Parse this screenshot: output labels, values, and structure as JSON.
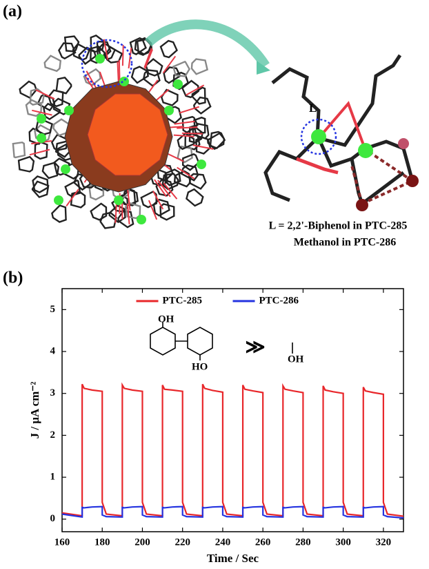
{
  "panel_a": {
    "label": "(a)",
    "ligand_label": "L",
    "caption_line1": "L =  2,2'-Biphenol in PTC-285",
    "caption_line2": "Methanol in PTC-286"
  },
  "panel_b": {
    "label": "(b)"
  },
  "chart_data": {
    "type": "line",
    "xlabel": "Time / Sec",
    "ylabel": "J / μA cm⁻²",
    "xlim": [
      160,
      330
    ],
    "ylim": [
      -0.3,
      5.5
    ],
    "xticks": [
      160,
      180,
      200,
      220,
      240,
      260,
      280,
      300,
      320
    ],
    "yticks": [
      0,
      1,
      2,
      3,
      4,
      5
    ],
    "legend": "upper center",
    "inset": {
      "top_oh": "OH",
      "bottom_ho": "HO",
      "much_greater": "≫",
      "methanol_oh": "OH"
    },
    "x": [
      160,
      170,
      170,
      171,
      175,
      180,
      180,
      182,
      190,
      190,
      191,
      195,
      200,
      200,
      202,
      210,
      210,
      211,
      215,
      220,
      220,
      222,
      230,
      230,
      231,
      235,
      240,
      240,
      242,
      250,
      250,
      251,
      255,
      260,
      260,
      262,
      270,
      270,
      271,
      275,
      280,
      280,
      282,
      290,
      290,
      291,
      295,
      300,
      300,
      302,
      310,
      310,
      311,
      315,
      320,
      320,
      322,
      330
    ],
    "series": [
      {
        "name": "PTC-285",
        "color": "#e8262a",
        "values": [
          0.15,
          0.08,
          3.22,
          3.12,
          3.08,
          3.05,
          0.4,
          0.12,
          0.08,
          3.2,
          3.12,
          3.08,
          3.05,
          0.4,
          0.12,
          0.08,
          3.2,
          3.1,
          3.08,
          3.05,
          0.4,
          0.12,
          0.08,
          3.22,
          3.12,
          3.07,
          3.03,
          0.4,
          0.12,
          0.08,
          3.2,
          3.1,
          3.06,
          3.02,
          0.4,
          0.12,
          0.08,
          3.18,
          3.1,
          3.06,
          3.02,
          0.4,
          0.12,
          0.08,
          3.18,
          3.08,
          3.04,
          3.0,
          0.4,
          0.12,
          0.08,
          3.15,
          3.06,
          3.02,
          2.98,
          0.4,
          0.12,
          0.07
        ]
      },
      {
        "name": "PTC-286",
        "color": "#2433e0",
        "values": [
          0.12,
          0.05,
          0.28,
          0.27,
          0.29,
          0.3,
          0.1,
          0.06,
          0.05,
          0.28,
          0.27,
          0.29,
          0.3,
          0.1,
          0.06,
          0.05,
          0.28,
          0.27,
          0.29,
          0.3,
          0.1,
          0.06,
          0.05,
          0.28,
          0.27,
          0.29,
          0.3,
          0.1,
          0.06,
          0.05,
          0.28,
          0.27,
          0.29,
          0.3,
          0.1,
          0.06,
          0.05,
          0.28,
          0.27,
          0.29,
          0.3,
          0.1,
          0.06,
          0.05,
          0.28,
          0.27,
          0.29,
          0.3,
          0.1,
          0.06,
          0.05,
          0.28,
          0.27,
          0.29,
          0.3,
          0.1,
          0.06,
          0.03
        ]
      }
    ]
  }
}
